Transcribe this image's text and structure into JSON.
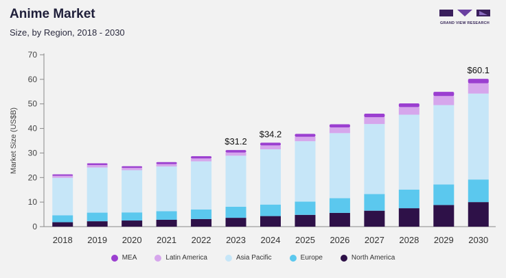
{
  "header": {
    "title": "Anime Market",
    "subtitle": "Size, by Region, 2018 - 2030",
    "brand": "GRAND VIEW RESEARCH"
  },
  "colors": {
    "MEA": "#9b3fd0",
    "Latin America": "#d6a6ec",
    "Asia Pacific": "#c6e6f8",
    "Europe": "#5bc8ee",
    "North America": "#2e1148"
  },
  "chart_data": {
    "type": "bar",
    "stacked": true,
    "title": "Anime Market",
    "subtitle": "Size, by Region, 2018 - 2030",
    "xlabel": "",
    "ylabel": "Market Size (US$B)",
    "ylim": [
      0,
      70
    ],
    "yticks": [
      0,
      10,
      20,
      30,
      40,
      50,
      60,
      70
    ],
    "grid": false,
    "legend": "bottom",
    "categories": [
      "2018",
      "2019",
      "2020",
      "2021",
      "2022",
      "2023",
      "2024",
      "2025",
      "2026",
      "2027",
      "2028",
      "2029",
      "2030"
    ],
    "series": [
      {
        "name": "North America",
        "values": [
          1.8,
          2.2,
          2.5,
          2.8,
          3.1,
          3.6,
          4.3,
          4.8,
          5.6,
          6.5,
          7.5,
          8.8,
          10.0
        ]
      },
      {
        "name": "Europe",
        "values": [
          2.8,
          3.5,
          3.3,
          3.5,
          3.9,
          4.5,
          4.7,
          5.4,
          6.0,
          6.8,
          7.6,
          8.4,
          9.2
        ]
      },
      {
        "name": "Asia Pacific",
        "values": [
          15.3,
          18.4,
          17.2,
          18.2,
          19.6,
          20.8,
          22.5,
          24.6,
          26.5,
          28.5,
          30.5,
          32.3,
          35.0
        ]
      },
      {
        "name": "Latin America",
        "values": [
          0.8,
          1.0,
          0.9,
          1.0,
          1.2,
          1.3,
          1.6,
          1.8,
          2.3,
          2.8,
          3.1,
          3.7,
          4.2
        ]
      },
      {
        "name": "MEA",
        "values": [
          0.6,
          0.7,
          0.7,
          0.8,
          0.9,
          1.0,
          1.1,
          1.2,
          1.3,
          1.4,
          1.5,
          1.7,
          1.8
        ]
      }
    ],
    "annotations": [
      {
        "category": "2023",
        "label": "$31.2"
      },
      {
        "category": "2024",
        "label": "$34.2"
      },
      {
        "category": "2030",
        "label": "$60.1"
      }
    ],
    "legend_order": [
      "MEA",
      "Latin America",
      "Asia Pacific",
      "Europe",
      "North America"
    ]
  }
}
